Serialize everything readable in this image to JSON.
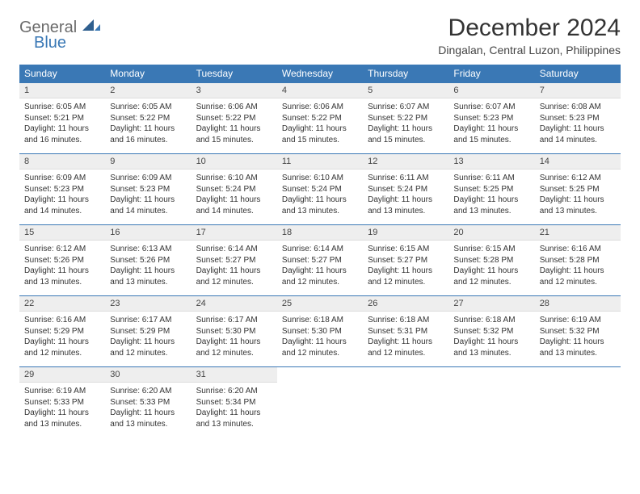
{
  "logo": {
    "line1": "General",
    "line2": "Blue"
  },
  "title": "December 2024",
  "subtitle": "Dingalan, Central Luzon, Philippines",
  "colors": {
    "header_bg": "#3a78b5",
    "header_text": "#ffffff",
    "daynum_bg": "#eeeeee",
    "border": "#3a78b5",
    "text": "#333333"
  },
  "weekdays": [
    "Sunday",
    "Monday",
    "Tuesday",
    "Wednesday",
    "Thursday",
    "Friday",
    "Saturday"
  ],
  "days": [
    {
      "n": 1,
      "sunrise": "6:05 AM",
      "sunset": "5:21 PM",
      "daylight": "11 hours and 16 minutes."
    },
    {
      "n": 2,
      "sunrise": "6:05 AM",
      "sunset": "5:22 PM",
      "daylight": "11 hours and 16 minutes."
    },
    {
      "n": 3,
      "sunrise": "6:06 AM",
      "sunset": "5:22 PM",
      "daylight": "11 hours and 15 minutes."
    },
    {
      "n": 4,
      "sunrise": "6:06 AM",
      "sunset": "5:22 PM",
      "daylight": "11 hours and 15 minutes."
    },
    {
      "n": 5,
      "sunrise": "6:07 AM",
      "sunset": "5:22 PM",
      "daylight": "11 hours and 15 minutes."
    },
    {
      "n": 6,
      "sunrise": "6:07 AM",
      "sunset": "5:23 PM",
      "daylight": "11 hours and 15 minutes."
    },
    {
      "n": 7,
      "sunrise": "6:08 AM",
      "sunset": "5:23 PM",
      "daylight": "11 hours and 14 minutes."
    },
    {
      "n": 8,
      "sunrise": "6:09 AM",
      "sunset": "5:23 PM",
      "daylight": "11 hours and 14 minutes."
    },
    {
      "n": 9,
      "sunrise": "6:09 AM",
      "sunset": "5:23 PM",
      "daylight": "11 hours and 14 minutes."
    },
    {
      "n": 10,
      "sunrise": "6:10 AM",
      "sunset": "5:24 PM",
      "daylight": "11 hours and 14 minutes."
    },
    {
      "n": 11,
      "sunrise": "6:10 AM",
      "sunset": "5:24 PM",
      "daylight": "11 hours and 13 minutes."
    },
    {
      "n": 12,
      "sunrise": "6:11 AM",
      "sunset": "5:24 PM",
      "daylight": "11 hours and 13 minutes."
    },
    {
      "n": 13,
      "sunrise": "6:11 AM",
      "sunset": "5:25 PM",
      "daylight": "11 hours and 13 minutes."
    },
    {
      "n": 14,
      "sunrise": "6:12 AM",
      "sunset": "5:25 PM",
      "daylight": "11 hours and 13 minutes."
    },
    {
      "n": 15,
      "sunrise": "6:12 AM",
      "sunset": "5:26 PM",
      "daylight": "11 hours and 13 minutes."
    },
    {
      "n": 16,
      "sunrise": "6:13 AM",
      "sunset": "5:26 PM",
      "daylight": "11 hours and 13 minutes."
    },
    {
      "n": 17,
      "sunrise": "6:14 AM",
      "sunset": "5:27 PM",
      "daylight": "11 hours and 12 minutes."
    },
    {
      "n": 18,
      "sunrise": "6:14 AM",
      "sunset": "5:27 PM",
      "daylight": "11 hours and 12 minutes."
    },
    {
      "n": 19,
      "sunrise": "6:15 AM",
      "sunset": "5:27 PM",
      "daylight": "11 hours and 12 minutes."
    },
    {
      "n": 20,
      "sunrise": "6:15 AM",
      "sunset": "5:28 PM",
      "daylight": "11 hours and 12 minutes."
    },
    {
      "n": 21,
      "sunrise": "6:16 AM",
      "sunset": "5:28 PM",
      "daylight": "11 hours and 12 minutes."
    },
    {
      "n": 22,
      "sunrise": "6:16 AM",
      "sunset": "5:29 PM",
      "daylight": "11 hours and 12 minutes."
    },
    {
      "n": 23,
      "sunrise": "6:17 AM",
      "sunset": "5:29 PM",
      "daylight": "11 hours and 12 minutes."
    },
    {
      "n": 24,
      "sunrise": "6:17 AM",
      "sunset": "5:30 PM",
      "daylight": "11 hours and 12 minutes."
    },
    {
      "n": 25,
      "sunrise": "6:18 AM",
      "sunset": "5:30 PM",
      "daylight": "11 hours and 12 minutes."
    },
    {
      "n": 26,
      "sunrise": "6:18 AM",
      "sunset": "5:31 PM",
      "daylight": "11 hours and 12 minutes."
    },
    {
      "n": 27,
      "sunrise": "6:18 AM",
      "sunset": "5:32 PM",
      "daylight": "11 hours and 13 minutes."
    },
    {
      "n": 28,
      "sunrise": "6:19 AM",
      "sunset": "5:32 PM",
      "daylight": "11 hours and 13 minutes."
    },
    {
      "n": 29,
      "sunrise": "6:19 AM",
      "sunset": "5:33 PM",
      "daylight": "11 hours and 13 minutes."
    },
    {
      "n": 30,
      "sunrise": "6:20 AM",
      "sunset": "5:33 PM",
      "daylight": "11 hours and 13 minutes."
    },
    {
      "n": 31,
      "sunrise": "6:20 AM",
      "sunset": "5:34 PM",
      "daylight": "11 hours and 13 minutes."
    }
  ],
  "labels": {
    "sunrise": "Sunrise: ",
    "sunset": "Sunset: ",
    "daylight": "Daylight: "
  },
  "layout": {
    "first_weekday_index": 0,
    "rows": 5,
    "cols": 7
  }
}
